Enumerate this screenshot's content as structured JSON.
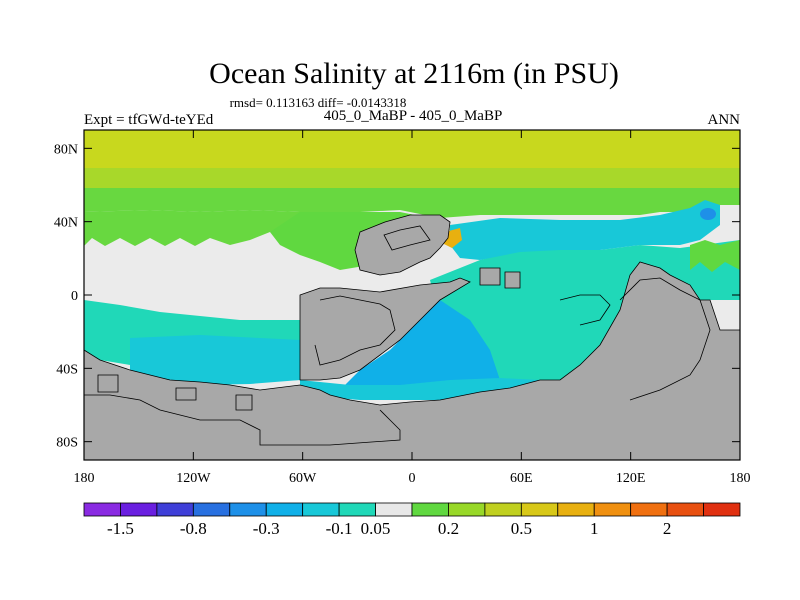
{
  "chart_data": {
    "type": "heatmap",
    "title": "Ocean Salinity at 2116m (in PSU)",
    "stats_line": "rmsd= 0.113163 diff= -0.0143318",
    "experiment_label": "Expt = tfGWd-teYEd",
    "subtitle": "405_0_MaBP - 405_0_MaBP",
    "season_label": "ANN",
    "x_ticks": [
      {
        "value": -180,
        "label": "180"
      },
      {
        "value": -120,
        "label": "120W"
      },
      {
        "value": -60,
        "label": "60W"
      },
      {
        "value": 0,
        "label": "0"
      },
      {
        "value": 60,
        "label": "60E"
      },
      {
        "value": 120,
        "label": "120E"
      },
      {
        "value": 180,
        "label": "180"
      }
    ],
    "y_ticks": [
      {
        "value": 80,
        "label": "80N"
      },
      {
        "value": 40,
        "label": "40N"
      },
      {
        "value": 0,
        "label": "0"
      },
      {
        "value": -40,
        "label": "40S"
      },
      {
        "value": -80,
        "label": "80S"
      }
    ],
    "x_range": [
      -180,
      180
    ],
    "y_range": [
      -90,
      90
    ],
    "colorbar": {
      "colors": [
        "#8a2be2",
        "#6a1fe0",
        "#3f3fd8",
        "#2870e0",
        "#1e90e8",
        "#10b0e8",
        "#18c8d8",
        "#20d8b8",
        "#e8e8e8",
        "#60d840",
        "#98d828",
        "#c0d020",
        "#d8c818",
        "#e8b010",
        "#f09010",
        "#f07010",
        "#e85010",
        "#e03010"
      ],
      "labels": [
        "-1.5",
        "-0.8",
        "-0.3",
        "-0.1",
        "0.05",
        "0.2",
        "0.5",
        "1",
        "2"
      ],
      "label_after_box": [
        1,
        3,
        5,
        7,
        8,
        10,
        12,
        14,
        16
      ]
    },
    "land_color": "#a8a8a8",
    "no_data_color": "#e8e8e8"
  }
}
